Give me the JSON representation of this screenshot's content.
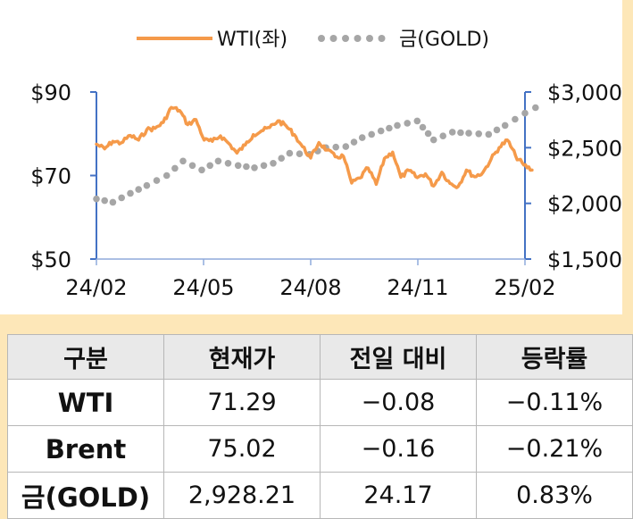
{
  "chart_data": {
    "type": "line",
    "legend_position": "top",
    "x_ticks": [
      "24/02",
      "24/05",
      "24/08",
      "24/11",
      "25/02"
    ],
    "y_left": {
      "ticks": [
        "$90",
        "$70",
        "$50"
      ],
      "range": [
        50,
        90
      ]
    },
    "y_right": {
      "ticks": [
        "$3,000",
        "$2,500",
        "$2,000",
        "$1,500"
      ],
      "range": [
        1500,
        3000
      ]
    },
    "series": [
      {
        "name": "WTI(좌)",
        "axis": "left",
        "style": "line",
        "color": "#f59a4a",
        "x": [
          "2024-02-01",
          "2024-02-08",
          "2024-02-15",
          "2024-02-22",
          "2024-03-01",
          "2024-03-08",
          "2024-03-15",
          "2024-03-22",
          "2024-03-29",
          "2024-04-05",
          "2024-04-12",
          "2024-04-19",
          "2024-04-26",
          "2024-05-03",
          "2024-05-10",
          "2024-05-17",
          "2024-05-24",
          "2024-05-31",
          "2024-06-07",
          "2024-06-14",
          "2024-06-21",
          "2024-06-28",
          "2024-07-05",
          "2024-07-12",
          "2024-07-19",
          "2024-07-26",
          "2024-08-02",
          "2024-08-09",
          "2024-08-16",
          "2024-08-23",
          "2024-08-30",
          "2024-09-06",
          "2024-09-13",
          "2024-09-20",
          "2024-09-27",
          "2024-10-04",
          "2024-10-11",
          "2024-10-18",
          "2024-10-25",
          "2024-11-01",
          "2024-11-08",
          "2024-11-15",
          "2024-11-22",
          "2024-11-29",
          "2024-12-06",
          "2024-12-13",
          "2024-12-20",
          "2024-12-27",
          "2025-01-03",
          "2025-01-10",
          "2025-01-17",
          "2025-01-24",
          "2025-01-31",
          "2025-02-07"
        ],
        "values": [
          77.5,
          76.4,
          78.2,
          77.8,
          79.6,
          78.5,
          81,
          81.3,
          82.7,
          86.3,
          85.6,
          82.2,
          83.4,
          78.5,
          78.2,
          79.5,
          77.7,
          75.4,
          77.3,
          79.8,
          80.7,
          81.5,
          83.1,
          81.9,
          79.8,
          76.9,
          74.2,
          77.9,
          76.1,
          74.5,
          74.6,
          68.2,
          69.4,
          71.8,
          67.9,
          74.1,
          75.6,
          69.6,
          71.2,
          69.5,
          70.4,
          67.5,
          70.8,
          68.1,
          67.4,
          71.3,
          69.7,
          70.7,
          73.9,
          76.7,
          78.5,
          74.7,
          72.5,
          71.3
        ]
      },
      {
        "name": "금(GOLD)",
        "axis": "right",
        "style": "dotted",
        "color": "#a6a6a6",
        "x": [
          "2024-02-01",
          "2024-02-15",
          "2024-03-01",
          "2024-03-15",
          "2024-04-01",
          "2024-04-15",
          "2024-05-01",
          "2024-05-15",
          "2024-06-01",
          "2024-06-15",
          "2024-07-01",
          "2024-07-15",
          "2024-08-01",
          "2024-08-15",
          "2024-09-01",
          "2024-09-15",
          "2024-10-01",
          "2024-10-15",
          "2024-11-01",
          "2024-11-15",
          "2024-12-01",
          "2024-12-15",
          "2025-01-01",
          "2025-01-15",
          "2025-02-01",
          "2025-02-10"
        ],
        "values": [
          2040,
          2010,
          2090,
          2160,
          2250,
          2380,
          2300,
          2380,
          2340,
          2320,
          2360,
          2450,
          2440,
          2500,
          2510,
          2590,
          2650,
          2700,
          2740,
          2570,
          2640,
          2630,
          2620,
          2700,
          2810,
          2860
        ]
      }
    ]
  },
  "table": {
    "headers": [
      "구분",
      "현재가",
      "전일 대비",
      "등락률"
    ],
    "rows": [
      [
        "WTI",
        "71.29",
        "−0.08",
        "−0.11%"
      ],
      [
        "Brent",
        "75.02",
        "−0.16",
        "−0.21%"
      ],
      [
        "금(GOLD)",
        "2,928.21",
        "24.17",
        "0.83%"
      ]
    ]
  }
}
